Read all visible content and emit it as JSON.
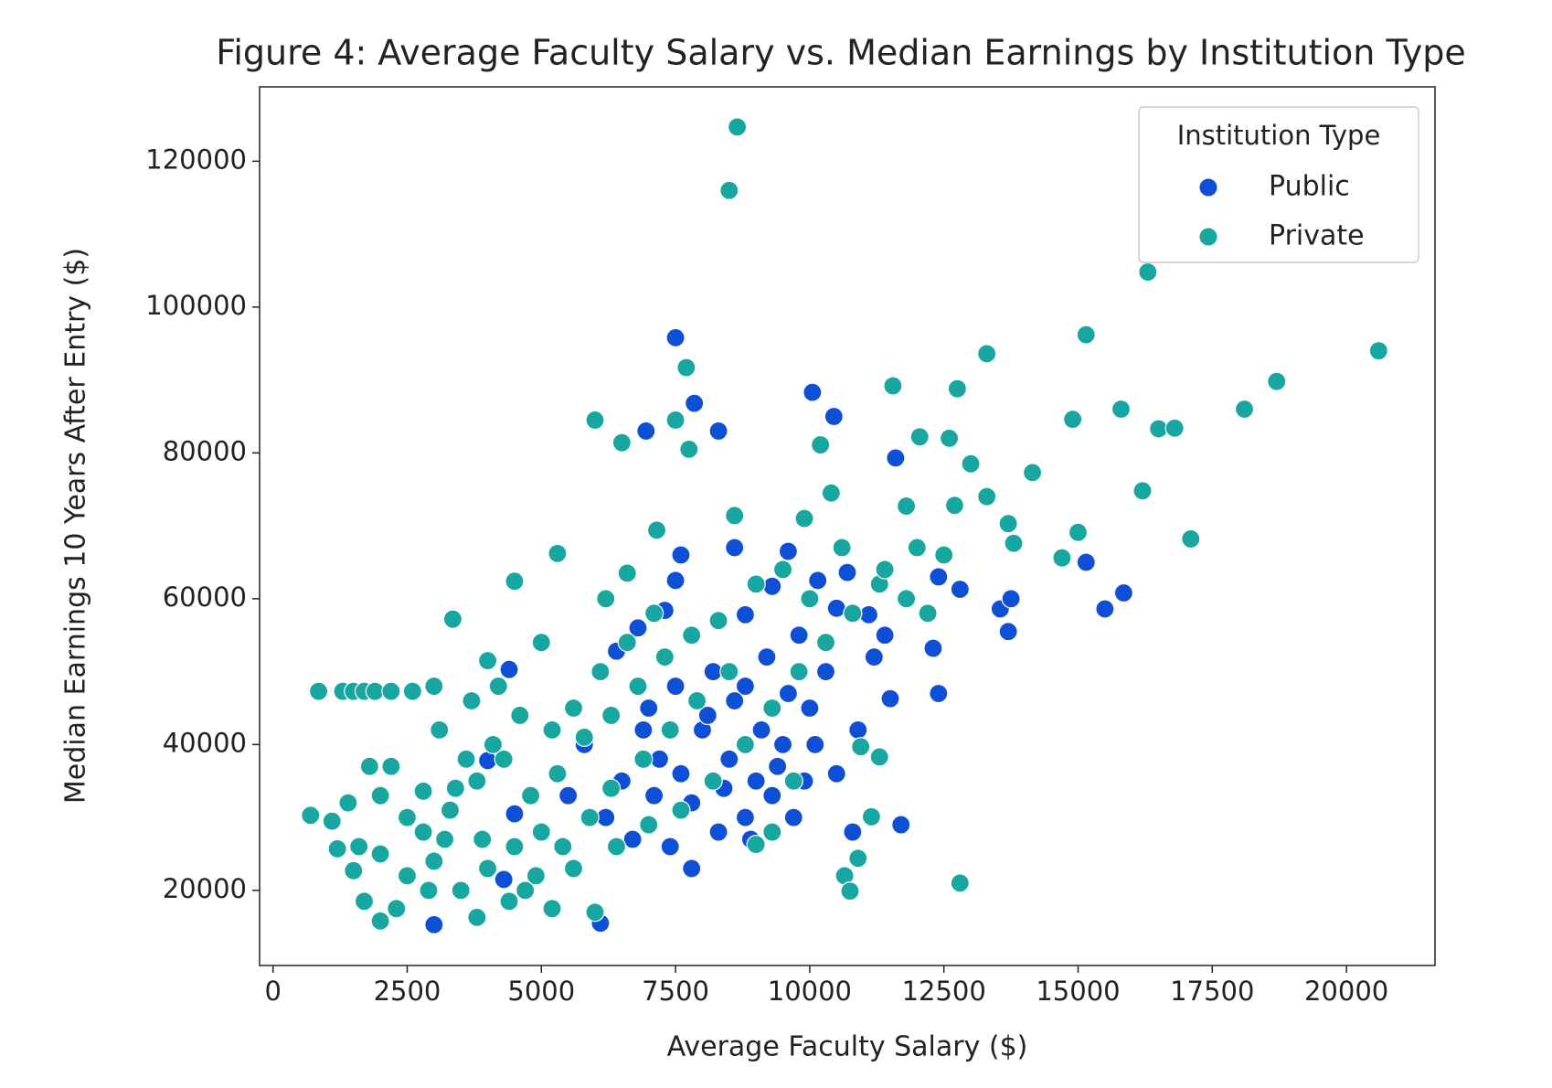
{
  "chart_data": {
    "type": "scatter",
    "title": "Figure 4: Average Faculty Salary vs. Median Earnings by Institution Type",
    "x_label": "Average Faculty Salary ($)",
    "y_label": "Median Earnings 10 Years After Entry ($)",
    "legend_title": "Institution Type",
    "legend_position": "upper right",
    "xlim": [
      -250,
      21650
    ],
    "ylim": [
      9700,
      130200
    ],
    "xticks": [
      0,
      2500,
      5000,
      7500,
      10000,
      12500,
      15000,
      17500,
      20000
    ],
    "yticks": [
      20000,
      40000,
      60000,
      80000,
      100000,
      120000
    ],
    "grid": false,
    "series": [
      {
        "name": "Public",
        "color": "#0f4fd6",
        "x": [
          7500,
          7850,
          6950,
          8300,
          10050,
          10450,
          11600,
          15150,
          15500,
          15850,
          13550,
          13750,
          13700,
          12400,
          11500,
          11700,
          10800,
          3000,
          6100,
          4400,
          7800,
          4300,
          4000,
          4500,
          12400,
          12800,
          12300,
          11100,
          10700,
          10500,
          10150,
          7600,
          7500,
          8600,
          9600,
          9300,
          8800,
          7300,
          6800,
          6400,
          7000,
          7500,
          8000,
          8500,
          9000,
          9500,
          10000,
          8200,
          8800,
          9200,
          9800,
          10300,
          7200,
          7800,
          8300,
          8800,
          9300,
          9700,
          6500,
          6200,
          5800,
          6700,
          7100,
          7600,
          8100,
          8600,
          9100,
          9600,
          10100,
          10500,
          10900,
          11200,
          11400,
          7400,
          8900,
          9400,
          9900,
          8400,
          6900,
          5500
        ],
        "values": [
          95800,
          86800,
          83000,
          83000,
          88300,
          85000,
          79300,
          65000,
          58600,
          60800,
          58600,
          60000,
          55500,
          47000,
          46300,
          29000,
          28000,
          15300,
          15500,
          50300,
          23000,
          21500,
          37800,
          30500,
          63000,
          61300,
          53200,
          57800,
          63600,
          58700,
          62500,
          66000,
          62500,
          67000,
          66500,
          61700,
          57800,
          58400,
          56000,
          52800,
          45000,
          48000,
          42000,
          38000,
          35000,
          40000,
          45000,
          50000,
          48000,
          52000,
          55000,
          50000,
          38000,
          32000,
          28000,
          30000,
          33000,
          30000,
          35000,
          30000,
          40000,
          27000,
          33000,
          36000,
          44000,
          46000,
          42000,
          47000,
          40000,
          36000,
          42000,
          52000,
          55000,
          26000,
          27000,
          37000,
          35000,
          34000,
          42000,
          33000
        ]
      },
      {
        "name": "Private",
        "color": "#17a6a0",
        "x": [
          8650,
          8500,
          16300,
          20600,
          18700,
          15150,
          13300,
          11550,
          12750,
          7700,
          7500,
          6000,
          6500,
          7750,
          18100,
          15800,
          14900,
          16500,
          16800,
          12600,
          12050,
          10200,
          13000,
          14150,
          16200,
          17100,
          15000,
          14700,
          13700,
          13800,
          13300,
          12700,
          11800,
          8600,
          7150,
          5300,
          4500,
          3350,
          850,
          1300,
          1500,
          1700,
          1900,
          2200,
          2600,
          3000,
          700,
          1100,
          1200,
          1500,
          1700,
          2000,
          2300,
          12800,
          10650,
          10750,
          10900,
          11150,
          11300,
          10950,
          3800,
          5200,
          6000,
          2800,
          3100,
          4000,
          5000,
          2000,
          2500,
          3000,
          3500,
          4000,
          4500,
          5000,
          2800,
          3300,
          3800,
          4300,
          4800,
          5300,
          5800,
          6300,
          6800,
          7300,
          7800,
          8300,
          5600,
          6100,
          6600,
          7100,
          5200,
          4600,
          4100,
          3600,
          2500,
          2000,
          1800,
          2200,
          3200,
          4700,
          5600,
          6400,
          7000,
          7600,
          8200,
          8800,
          9300,
          9800,
          10300,
          10800,
          11300,
          11800,
          12200,
          9000,
          9500,
          10000,
          8500,
          7900,
          7400,
          6900,
          6300,
          5900,
          5400,
          4900,
          4400,
          3900,
          3400,
          2900,
          1600,
          1400,
          3700,
          4200,
          6600,
          6200,
          9900,
          10400,
          10600,
          11400,
          12000,
          12500,
          9300,
          9000,
          9700
        ],
        "values": [
          124700,
          116000,
          104800,
          94000,
          89800,
          96200,
          93600,
          89200,
          88800,
          91700,
          84500,
          84500,
          81400,
          80500,
          86000,
          86000,
          84600,
          83300,
          83400,
          82000,
          82200,
          81100,
          78500,
          77300,
          74800,
          68200,
          69100,
          65600,
          70300,
          67600,
          74000,
          72800,
          72700,
          71400,
          69400,
          66200,
          62400,
          57200,
          47300,
          47300,
          47300,
          47300,
          47300,
          47300,
          47300,
          48000,
          30300,
          29500,
          25700,
          22700,
          18500,
          15800,
          17500,
          21000,
          22000,
          19900,
          24400,
          30100,
          38300,
          39700,
          16300,
          17500,
          17000,
          33600,
          42000,
          51500,
          54000,
          25000,
          22000,
          24000,
          20000,
          23000,
          26000,
          28000,
          28000,
          31000,
          35000,
          38000,
          33000,
          36000,
          41000,
          44000,
          48000,
          52000,
          55000,
          57000,
          45000,
          50000,
          54000,
          58000,
          42000,
          44000,
          40000,
          38000,
          30000,
          33000,
          37000,
          37000,
          27000,
          20000,
          23000,
          26000,
          29000,
          31000,
          35000,
          40000,
          45000,
          50000,
          54000,
          58000,
          62000,
          60000,
          58000,
          62000,
          64000,
          60000,
          50000,
          46000,
          42000,
          38000,
          34000,
          30000,
          26000,
          22000,
          18500,
          27000,
          34000,
          20000,
          26000,
          32000,
          46000,
          48000,
          63500,
          60000,
          71000,
          74500,
          67000,
          64000,
          67000,
          66000,
          28000,
          26300,
          35000
        ]
      }
    ]
  }
}
